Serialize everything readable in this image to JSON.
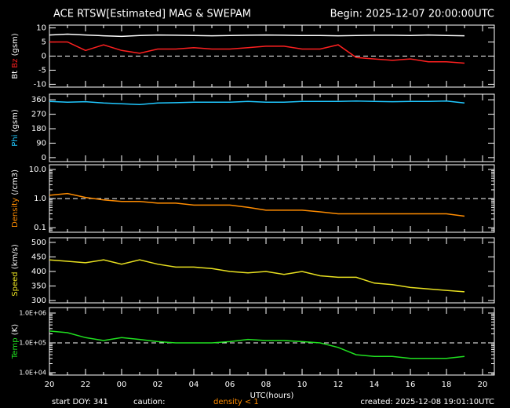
{
  "header": {
    "title": "ACE RTSW[Estimated] MAG & SWEPAM",
    "begin": "Begin: 2025-12-07 20:00:00UTC"
  },
  "footer": {
    "start": "start DOY: 341",
    "caution": "caution:",
    "caution_note": "density < 1",
    "created": "created: 2025-12-08 19:01:10UTC"
  },
  "chart_data": [
    {
      "type": "line",
      "ylabel": "(gsm)",
      "xlim": [
        0,
        24.65
      ],
      "ylim": [
        -11,
        11
      ],
      "yticks": [
        10,
        5,
        0,
        -5,
        -10
      ],
      "refline": 0,
      "x": [
        0,
        1,
        2,
        3,
        4,
        5,
        6,
        7,
        8,
        9,
        10,
        11,
        12,
        13,
        14,
        15,
        16,
        17,
        18,
        19,
        20,
        21,
        22,
        23
      ],
      "series": [
        {
          "name": "Bt",
          "color": "#ffffff",
          "values": [
            7.5,
            7.8,
            7.5,
            7.2,
            7.0,
            7.3,
            7.5,
            7.4,
            7.3,
            7.2,
            7.3,
            7.4,
            7.5,
            7.4,
            7.3,
            7.3,
            7.2,
            7.3,
            7.4,
            7.4,
            7.3,
            7.5,
            7.3,
            7.2
          ]
        },
        {
          "name": "Bz",
          "color": "#ff2020",
          "values": [
            5,
            5,
            2,
            4,
            2,
            1,
            2.5,
            2.5,
            3,
            2.5,
            2.5,
            3,
            3.5,
            3.5,
            2.5,
            2.5,
            4,
            -0.5,
            -1,
            -1.5,
            -1,
            -2,
            -2,
            -2.5
          ]
        }
      ]
    },
    {
      "type": "line",
      "ylabel": "(gsm)",
      "xlim": [
        0,
        24.65
      ],
      "ylim": [
        -25,
        395
      ],
      "yticks": [
        360,
        270,
        180,
        90,
        0
      ],
      "x": [
        0,
        1,
        2,
        3,
        4,
        5,
        6,
        7,
        8,
        9,
        10,
        11,
        12,
        13,
        14,
        15,
        16,
        17,
        18,
        19,
        20,
        21,
        22,
        23
      ],
      "series": [
        {
          "name": "Phi",
          "color": "#20c8ff",
          "values": [
            350,
            345,
            348,
            340,
            335,
            330,
            340,
            342,
            345,
            345,
            345,
            350,
            345,
            345,
            350,
            350,
            350,
            352,
            350,
            348,
            350,
            350,
            352,
            340
          ]
        }
      ]
    },
    {
      "type": "line",
      "ylabel": "(/cm3)",
      "log": true,
      "xlim": [
        0,
        24.65
      ],
      "ylim": [
        0.07,
        14.5
      ],
      "yticks": [
        {
          "value": 10,
          "label": "10.0"
        },
        {
          "value": 1,
          "label": "1.0"
        },
        0.1
      ],
      "refline": 1,
      "x": [
        0,
        1,
        2,
        3,
        4,
        5,
        6,
        7,
        8,
        9,
        10,
        11,
        12,
        13,
        14,
        15,
        16,
        17,
        18,
        19,
        20,
        21,
        22,
        23
      ],
      "series": [
        {
          "name": "Density",
          "color": "#ff8c00",
          "values": [
            1.3,
            1.5,
            1.1,
            0.9,
            0.8,
            0.8,
            0.7,
            0.7,
            0.6,
            0.6,
            0.6,
            0.5,
            0.4,
            0.4,
            0.4,
            0.35,
            0.3,
            0.3,
            0.3,
            0.3,
            0.3,
            0.3,
            0.3,
            0.25
          ]
        }
      ]
    },
    {
      "type": "line",
      "ylabel": "(km/s)",
      "xlim": [
        0,
        24.65
      ],
      "ylim": [
        292,
        516
      ],
      "yticks": [
        500,
        450,
        400,
        350,
        300
      ],
      "x": [
        0,
        1,
        2,
        3,
        4,
        5,
        6,
        7,
        8,
        9,
        10,
        11,
        12,
        13,
        14,
        15,
        16,
        17,
        18,
        19,
        20,
        21,
        22,
        23
      ],
      "series": [
        {
          "name": "Speed",
          "color": "#e8e020",
          "values": [
            440,
            435,
            430,
            440,
            425,
            440,
            425,
            415,
            415,
            410,
            400,
            395,
            400,
            390,
            400,
            385,
            380,
            380,
            360,
            355,
            345,
            340,
            335,
            330
          ]
        }
      ]
    },
    {
      "type": "line",
      "ylabel": "(K)",
      "log": true,
      "xlim": [
        0,
        24.65
      ],
      "ylim": [
        8300,
        1530000
      ],
      "yticks": [
        {
          "value": 1000000,
          "label": "1.0E+06"
        },
        {
          "value": 100000,
          "label": "1.0E+05"
        },
        {
          "value": 10000,
          "label": "1.0E+04"
        }
      ],
      "refline": 100000,
      "xlabel": "UTC(hours)",
      "xticks": [
        {
          "value": 0,
          "label": "20"
        },
        {
          "value": 2,
          "label": "22"
        },
        {
          "value": 4,
          "label": "00"
        },
        {
          "value": 6,
          "label": "02"
        },
        {
          "value": 8,
          "label": "04"
        },
        {
          "value": 10,
          "label": "06"
        },
        {
          "value": 12,
          "label": "08"
        },
        {
          "value": 14,
          "label": "10"
        },
        {
          "value": 16,
          "label": "12"
        },
        {
          "value": 18,
          "label": "14"
        },
        {
          "value": 20,
          "label": "16"
        },
        {
          "value": 22,
          "label": "18"
        },
        {
          "value": 24,
          "label": "20"
        }
      ],
      "x": [
        0,
        1,
        2,
        3,
        4,
        5,
        6,
        7,
        8,
        9,
        10,
        11,
        12,
        13,
        14,
        15,
        16,
        17,
        18,
        19,
        20,
        21,
        22,
        23
      ],
      "series": [
        {
          "name": "Temp",
          "color": "#20e020",
          "values": [
            250000,
            220000,
            150000,
            120000,
            150000,
            130000,
            110000,
            100000,
            100000,
            100000,
            110000,
            130000,
            120000,
            120000,
            110000,
            100000,
            70000,
            40000,
            35000,
            35000,
            30000,
            30000,
            30000,
            35000
          ]
        }
      ]
    }
  ]
}
